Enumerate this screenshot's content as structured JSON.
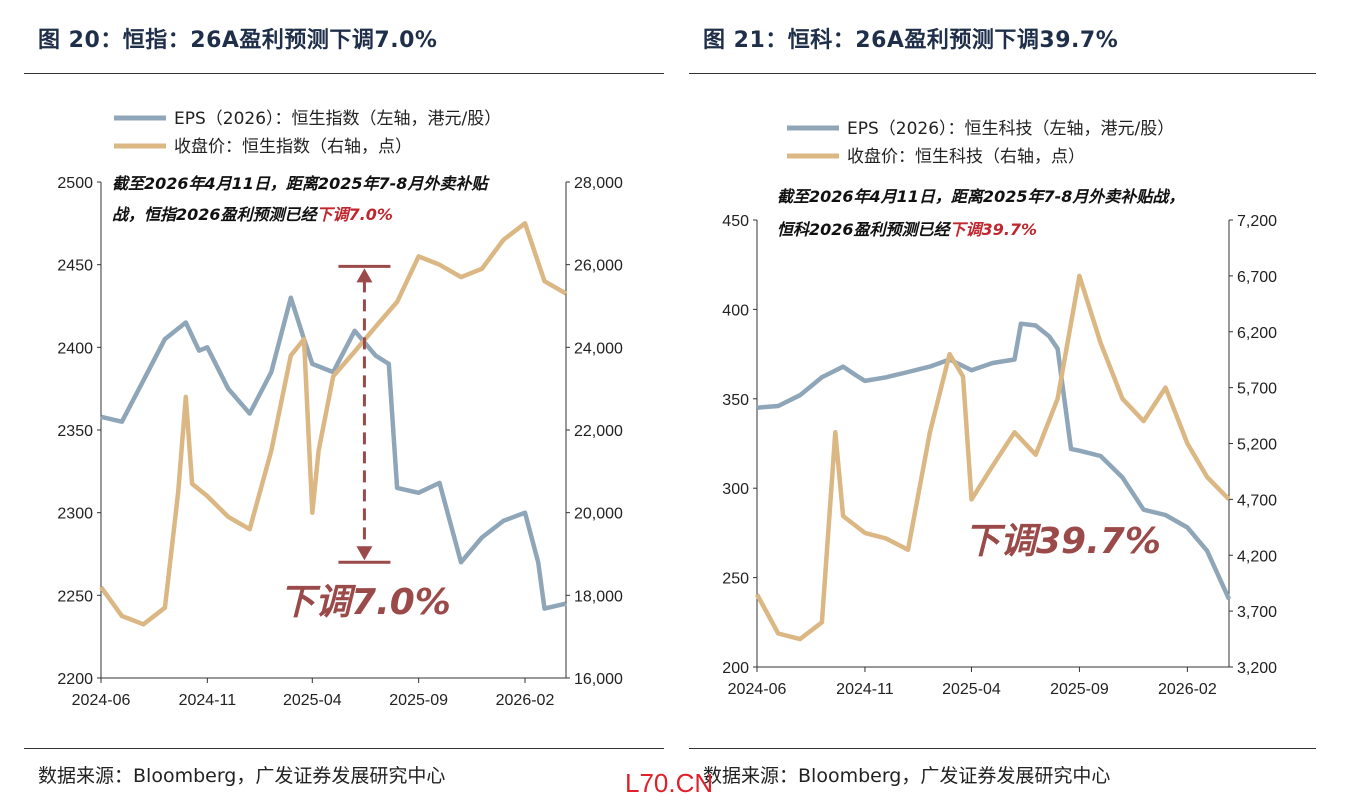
{
  "watermark": "L70.CN",
  "chart_data": [
    {
      "type": "line",
      "title": "图 20：恒指：26A盈利预测下调7.0%",
      "source": "数据来源：Bloomberg，广发证券发展研究中心",
      "x_ticks": [
        "2024-06",
        "2024-11",
        "2025-04",
        "2025-09",
        "2026-02"
      ],
      "x_range": [
        "2024-06",
        "2026-04"
      ],
      "y_left": {
        "ticks": [
          2200,
          2250,
          2300,
          2350,
          2400,
          2450,
          2500
        ],
        "range": [
          2200,
          2500
        ]
      },
      "y_right": {
        "ticks": [
          "16,000",
          "18,000",
          "20,000",
          "22,000",
          "24,000",
          "26,000",
          "28,000"
        ],
        "range": [
          16000,
          28000
        ]
      },
      "annotation": {
        "line1": "截至2026年4月11日，距离2025年7-8月外卖补贴",
        "line2_prefix": "战，恒指2026盈利预测已经",
        "line2_highlight": "下调7.0%",
        "big": "下调7.0%"
      },
      "series": [
        {
          "name": "EPS（2026）：恒生指数（左轴，港元/股）",
          "axis": "left",
          "color": "#8fa6b8",
          "points": [
            [
              "2024-06",
              2358
            ],
            [
              "2024-07",
              2355
            ],
            [
              "2024-08",
              2380
            ],
            [
              "2024-09",
              2405
            ],
            [
              "2024-10",
              2415
            ],
            [
              "2024-10-20",
              2398
            ],
            [
              "2024-11",
              2400
            ],
            [
              "2024-12",
              2375
            ],
            [
              "2025-01",
              2360
            ],
            [
              "2025-02",
              2385
            ],
            [
              "2025-03",
              2430
            ],
            [
              "2025-03-20",
              2405
            ],
            [
              "2025-04",
              2390
            ],
            [
              "2025-05",
              2385
            ],
            [
              "2025-06",
              2410
            ],
            [
              "2025-07",
              2395
            ],
            [
              "2025-07-20",
              2390
            ],
            [
              "2025-08",
              2315
            ],
            [
              "2025-09",
              2312
            ],
            [
              "2025-10",
              2318
            ],
            [
              "2025-11",
              2270
            ],
            [
              "2025-12",
              2285
            ],
            [
              "2026-01",
              2295
            ],
            [
              "2026-02",
              2300
            ],
            [
              "2026-02-20",
              2270
            ],
            [
              "2026-03",
              2242
            ],
            [
              "2026-04",
              2245
            ]
          ]
        },
        {
          "name": "收盘价：恒生指数（右轴，点）",
          "axis": "right",
          "color": "#dbb784",
          "points": [
            [
              "2024-06",
              18200
            ],
            [
              "2024-07",
              17500
            ],
            [
              "2024-08",
              17300
            ],
            [
              "2024-09",
              17700
            ],
            [
              "2024-09-20",
              20500
            ],
            [
              "2024-10",
              22800
            ],
            [
              "2024-10-10",
              20700
            ],
            [
              "2024-11",
              20400
            ],
            [
              "2024-12",
              19900
            ],
            [
              "2025-01",
              19600
            ],
            [
              "2025-02",
              21500
            ],
            [
              "2025-03",
              23800
            ],
            [
              "2025-03-20",
              24200
            ],
            [
              "2025-04",
              20000
            ],
            [
              "2025-04-10",
              21500
            ],
            [
              "2025-05",
              23300
            ],
            [
              "2025-06",
              23900
            ],
            [
              "2025-07",
              24500
            ],
            [
              "2025-08",
              25100
            ],
            [
              "2025-09",
              26200
            ],
            [
              "2025-10",
              26000
            ],
            [
              "2025-11",
              25700
            ],
            [
              "2025-12",
              25900
            ],
            [
              "2026-01",
              26600
            ],
            [
              "2026-02",
              27000
            ],
            [
              "2026-03",
              25600
            ],
            [
              "2026-04",
              25300
            ]
          ]
        }
      ]
    },
    {
      "type": "line",
      "title": "图 21：恒科：26A盈利预测下调39.7%",
      "source": "数据来源：Bloomberg，广发证券发展研究中心",
      "x_ticks": [
        "2024-06",
        "2024-11",
        "2025-04",
        "2025-09",
        "2026-02"
      ],
      "x_range": [
        "2024-06",
        "2026-04"
      ],
      "y_left": {
        "ticks": [
          200,
          250,
          300,
          350,
          400,
          450
        ],
        "range": [
          200,
          450
        ]
      },
      "y_right": {
        "ticks": [
          "3,200",
          "3,700",
          "4,200",
          "4,700",
          "5,200",
          "5,700",
          "6,200",
          "6,700",
          "7,200"
        ],
        "range": [
          3200,
          7200
        ]
      },
      "annotation": {
        "line1": "截至2026年4月11日，距离2025年7-8月外卖补贴战，",
        "line2_prefix": "恒科2026盈利预测已经",
        "line2_highlight": "下调39.7%",
        "big": "下调39.7%"
      },
      "series": [
        {
          "name": "EPS（2026）：恒生科技（左轴，港元/股）",
          "axis": "left",
          "color": "#8fa6b8",
          "points": [
            [
              "2024-06",
              345
            ],
            [
              "2024-07",
              346
            ],
            [
              "2024-08",
              352
            ],
            [
              "2024-09",
              362
            ],
            [
              "2024-10",
              368
            ],
            [
              "2024-10-20",
              363
            ],
            [
              "2024-11",
              360
            ],
            [
              "2024-12",
              362
            ],
            [
              "2025-01",
              365
            ],
            [
              "2025-02",
              368
            ],
            [
              "2025-03",
              372
            ],
            [
              "2025-04",
              366
            ],
            [
              "2025-05",
              370
            ],
            [
              "2025-06",
              372
            ],
            [
              "2025-06-10",
              392
            ],
            [
              "2025-07",
              391
            ],
            [
              "2025-07-20",
              385
            ],
            [
              "2025-08",
              378
            ],
            [
              "2025-08-20",
              322
            ],
            [
              "2025-09",
              321
            ],
            [
              "2025-10",
              318
            ],
            [
              "2025-11",
              306
            ],
            [
              "2025-12",
              288
            ],
            [
              "2026-01",
              285
            ],
            [
              "2026-02",
              278
            ],
            [
              "2026-03",
              265
            ],
            [
              "2026-04",
              238
            ]
          ]
        },
        {
          "name": "收盘价：恒生科技（右轴，点）",
          "axis": "right",
          "color": "#dbb784",
          "points": [
            [
              "2024-06",
              3850
            ],
            [
              "2024-07",
              3500
            ],
            [
              "2024-08",
              3450
            ],
            [
              "2024-09",
              3600
            ],
            [
              "2024-09-20",
              5300
            ],
            [
              "2024-10",
              4550
            ],
            [
              "2024-11",
              4400
            ],
            [
              "2024-12",
              4350
            ],
            [
              "2025-01",
              4250
            ],
            [
              "2025-02",
              5300
            ],
            [
              "2025-03",
              6000
            ],
            [
              "2025-03-20",
              5800
            ],
            [
              "2025-04",
              4700
            ],
            [
              "2025-05",
              5000
            ],
            [
              "2025-06",
              5300
            ],
            [
              "2025-07",
              5100
            ],
            [
              "2025-08",
              5600
            ],
            [
              "2025-09",
              6700
            ],
            [
              "2025-10",
              6100
            ],
            [
              "2025-11",
              5600
            ],
            [
              "2025-12",
              5400
            ],
            [
              "2026-01",
              5700
            ],
            [
              "2026-02",
              5200
            ],
            [
              "2026-03",
              4900
            ],
            [
              "2026-04",
              4700
            ]
          ]
        }
      ]
    }
  ]
}
